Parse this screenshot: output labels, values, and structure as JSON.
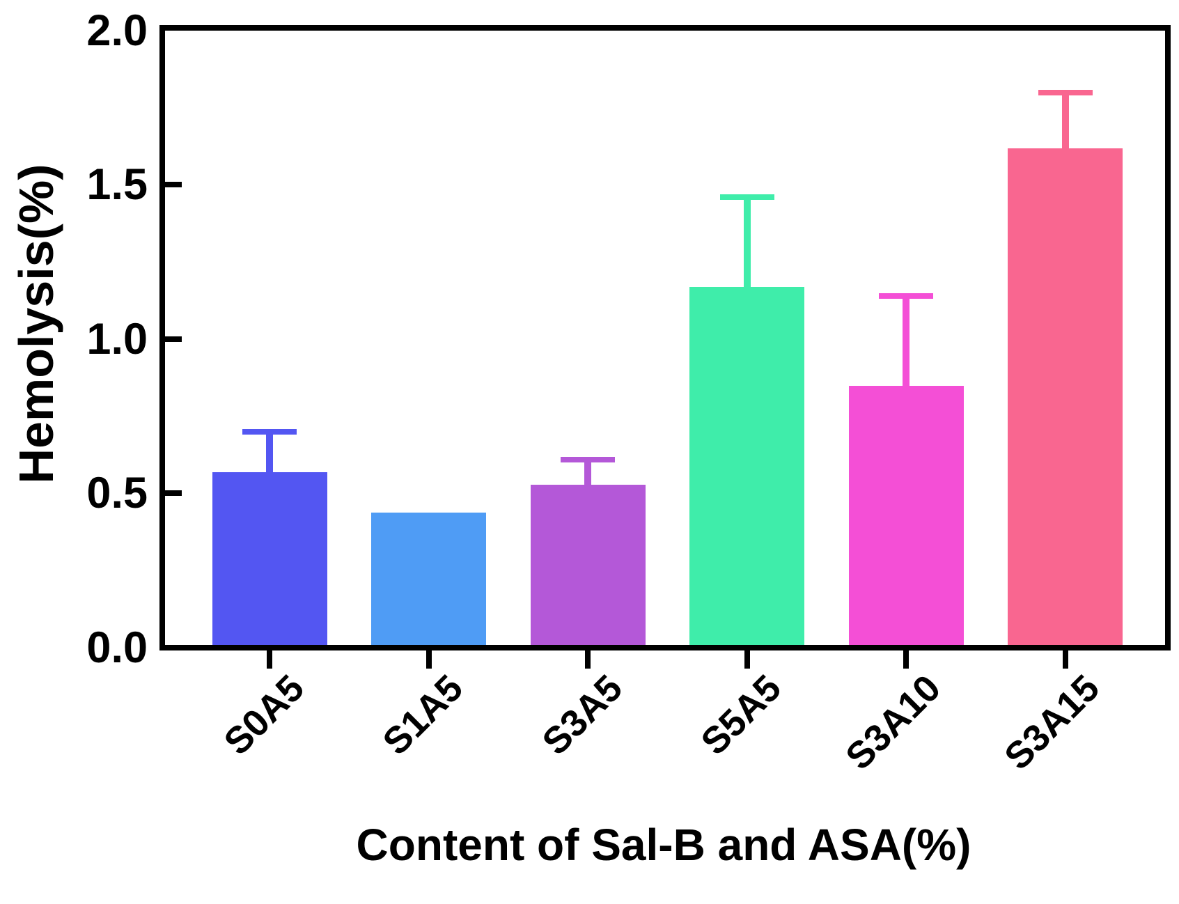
{
  "chart_data": {
    "type": "bar",
    "title": "",
    "xlabel": "Content of Sal-B and ASA(%)",
    "ylabel": "Hemolysis(%)",
    "ylim": [
      0,
      2
    ],
    "yticks": [
      0.0,
      0.5,
      1.0,
      1.5,
      2.0
    ],
    "ytick_labels": [
      "0.0",
      "0.5",
      "1.0",
      "1.5",
      "2.0"
    ],
    "categories": [
      "S0A5",
      "S1A5",
      "S3A5",
      "S5A5",
      "S3A10",
      "S3A15"
    ],
    "values": [
      0.56,
      0.43,
      0.52,
      1.16,
      0.84,
      1.61
    ],
    "errors_plus": [
      0.14,
      null,
      0.09,
      0.3,
      0.3,
      0.19
    ],
    "bar_colors": [
      "#5356F2",
      "#4F9CF5",
      "#B458D8",
      "#3FEDAA",
      "#F44FD6",
      "#F96690"
    ],
    "axis_color": "#000000",
    "background_color": "#ffffff",
    "grid": false,
    "legend": null,
    "error_bars": "upper-only, same color as bar, T-cap"
  }
}
